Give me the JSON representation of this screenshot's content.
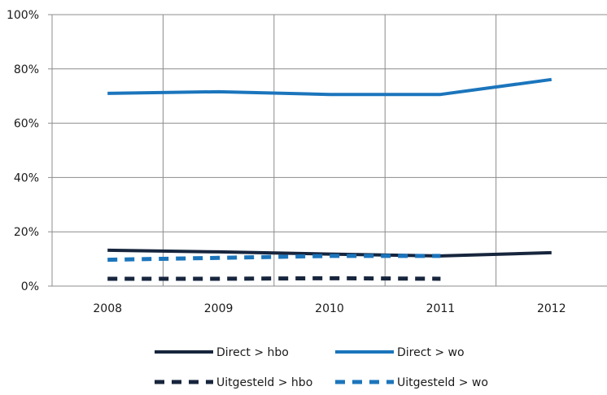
{
  "chart_data": {
    "type": "line",
    "categories": [
      "2008",
      "2009",
      "2010",
      "2011",
      "2012"
    ],
    "y_ticks": [
      "0%",
      "20%",
      "40%",
      "60%",
      "80%",
      "100%"
    ],
    "ylim": [
      0,
      100
    ],
    "grid": true,
    "legend_position": "bottom",
    "series": [
      {
        "name": "Direct > hbo",
        "values": [
          13.2,
          12.6,
          11.8,
          11.1,
          12.3
        ],
        "color": "#17253d",
        "dash": "solid"
      },
      {
        "name": "Direct > wo",
        "values": [
          71.0,
          71.6,
          70.6,
          70.6,
          76.1
        ],
        "color": "#1b75bc",
        "dash": "solid"
      },
      {
        "name": "Uitgesteld > hbo",
        "values": [
          2.7,
          2.7,
          2.9,
          2.7,
          null
        ],
        "color": "#17253d",
        "dash": "dashed"
      },
      {
        "name": "Uitgesteld > wo",
        "values": [
          9.7,
          10.4,
          11.1,
          11.1,
          null
        ],
        "color": "#1b75bc",
        "dash": "dashed"
      }
    ]
  }
}
